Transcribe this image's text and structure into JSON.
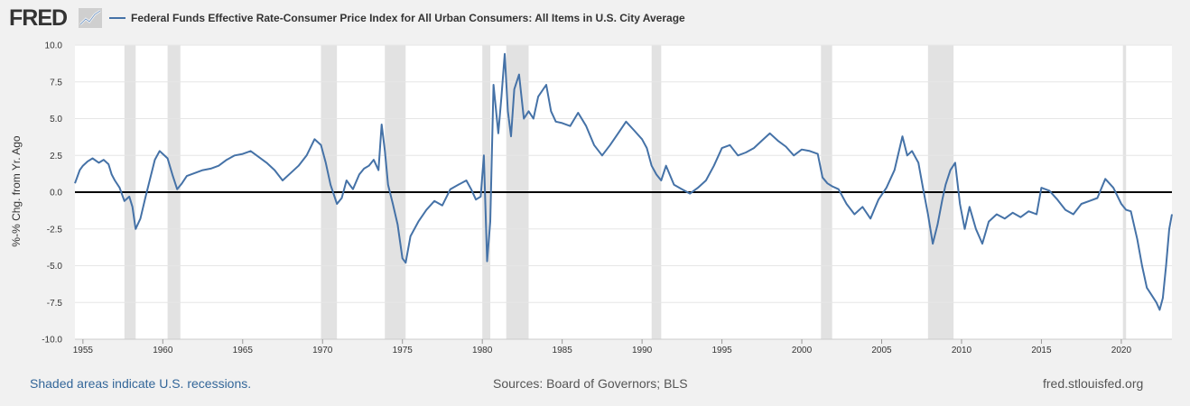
{
  "header": {
    "logo_text": "FRED",
    "legend_label": "Federal Funds Effective Rate-Consumer Price Index for All Urban Consumers: All Items in U.S. City Average"
  },
  "footer": {
    "note": "Shaded areas indicate U.S. recessions.",
    "sources": "Sources: Board of Governors; BLS",
    "site": "fred.stlouisfed.org"
  },
  "colors": {
    "series": "#4572a7",
    "recession": "#e2e2e2",
    "grid": "#e6e6e6",
    "zero_line": "#000000"
  },
  "chart_data": {
    "type": "line",
    "title": "Federal Funds Effective Rate-Consumer Price Index for All Urban Consumers: All Items in U.S. City Average",
    "xlabel": "",
    "ylabel": "%-% Chg. from Yr. Ago",
    "xlim": [
      1954.5,
      2023.17
    ],
    "ylim": [
      -10,
      10
    ],
    "x_ticks": [
      "1955",
      "1960",
      "1965",
      "1970",
      "1975",
      "1980",
      "1985",
      "1990",
      "1995",
      "2000",
      "2005",
      "2010",
      "2015",
      "2020"
    ],
    "y_ticks": [
      "10.0",
      "7.5",
      "5.0",
      "2.5",
      "0.0",
      "-2.5",
      "-5.0",
      "-7.5",
      "-10.0"
    ],
    "recessions": [
      [
        1957.6,
        1958.3
      ],
      [
        1960.3,
        1961.1
      ],
      [
        1969.9,
        1970.9
      ],
      [
        1973.9,
        1975.2
      ],
      [
        1980.0,
        1980.5
      ],
      [
        1981.5,
        1982.9
      ],
      [
        1990.6,
        1991.2
      ],
      [
        2001.2,
        2001.9
      ],
      [
        2007.9,
        2009.5
      ],
      [
        2020.1,
        2020.3
      ]
    ],
    "zero_line": 0,
    "series": [
      {
        "name": "Federal Funds Effective Rate-Consumer Price Index for All Urban Consumers: All Items in U.S. City Average",
        "x": [
          1954.5,
          1954.8,
          1955.0,
          1955.3,
          1955.6,
          1956.0,
          1956.3,
          1956.6,
          1956.8,
          1957.0,
          1957.3,
          1957.6,
          1957.9,
          1958.1,
          1958.3,
          1958.6,
          1958.9,
          1959.2,
          1959.5,
          1959.8,
          1960.0,
          1960.3,
          1960.6,
          1960.9,
          1961.2,
          1961.5,
          1962.0,
          1962.5,
          1963.0,
          1963.5,
          1964.0,
          1964.5,
          1965.0,
          1965.5,
          1966.0,
          1966.5,
          1967.0,
          1967.5,
          1968.0,
          1968.5,
          1969.0,
          1969.5,
          1969.9,
          1970.2,
          1970.5,
          1970.9,
          1971.2,
          1971.5,
          1971.9,
          1972.3,
          1972.6,
          1972.9,
          1973.2,
          1973.5,
          1973.7,
          1973.9,
          1974.1,
          1974.4,
          1974.7,
          1975.0,
          1975.2,
          1975.5,
          1976.0,
          1976.5,
          1977.0,
          1977.5,
          1978.0,
          1978.5,
          1979.0,
          1979.3,
          1979.6,
          1979.9,
          1980.1,
          1980.3,
          1980.5,
          1980.7,
          1981.0,
          1981.2,
          1981.4,
          1981.6,
          1981.8,
          1982.0,
          1982.3,
          1982.6,
          1982.9,
          1983.2,
          1983.5,
          1984.0,
          1984.3,
          1984.6,
          1985.0,
          1985.5,
          1986.0,
          1986.5,
          1987.0,
          1987.5,
          1988.0,
          1988.5,
          1989.0,
          1989.5,
          1990.0,
          1990.3,
          1990.6,
          1990.9,
          1991.2,
          1991.5,
          1992.0,
          1992.5,
          1993.0,
          1993.5,
          1994.0,
          1994.5,
          1995.0,
          1995.5,
          1996.0,
          1996.5,
          1997.0,
          1997.5,
          1998.0,
          1998.5,
          1999.0,
          1999.5,
          2000.0,
          2000.5,
          2001.0,
          2001.3,
          2001.6,
          2001.9,
          2002.3,
          2002.8,
          2003.3,
          2003.8,
          2004.3,
          2004.8,
          2005.3,
          2005.8,
          2006.3,
          2006.6,
          2006.9,
          2007.3,
          2007.6,
          2007.9,
          2008.2,
          2008.5,
          2008.8,
          2009.0,
          2009.3,
          2009.6,
          2009.9,
          2010.2,
          2010.5,
          2010.9,
          2011.3,
          2011.7,
          2012.2,
          2012.7,
          2013.2,
          2013.7,
          2014.2,
          2014.7,
          2015.0,
          2015.5,
          2016.0,
          2016.5,
          2017.0,
          2017.5,
          2018.0,
          2018.5,
          2019.0,
          2019.5,
          2020.0,
          2020.3,
          2020.6,
          2021.0,
          2021.3,
          2021.6,
          2021.9,
          2022.2,
          2022.4,
          2022.6,
          2022.8,
          2023.0,
          2023.17
        ],
        "values": [
          0.6,
          1.5,
          1.8,
          2.1,
          2.3,
          2.0,
          2.2,
          1.9,
          1.2,
          0.8,
          0.3,
          -0.6,
          -0.3,
          -1.0,
          -2.5,
          -1.8,
          -0.4,
          0.9,
          2.2,
          2.8,
          2.6,
          2.3,
          1.2,
          0.2,
          0.6,
          1.1,
          1.3,
          1.5,
          1.6,
          1.8,
          2.2,
          2.5,
          2.6,
          2.8,
          2.4,
          2.0,
          1.5,
          0.8,
          1.3,
          1.8,
          2.5,
          3.6,
          3.2,
          2.0,
          0.5,
          -0.8,
          -0.4,
          0.8,
          0.2,
          1.2,
          1.6,
          1.8,
          2.2,
          1.5,
          4.6,
          2.8,
          0.5,
          -0.8,
          -2.2,
          -4.5,
          -4.8,
          -3.0,
          -2.0,
          -1.2,
          -0.6,
          -0.9,
          0.2,
          0.5,
          0.8,
          0.2,
          -0.5,
          -0.3,
          2.5,
          -4.7,
          -2.0,
          7.3,
          4.0,
          6.5,
          9.4,
          5.5,
          3.8,
          7.0,
          8.0,
          5.0,
          5.5,
          5.0,
          6.5,
          7.3,
          5.5,
          4.8,
          4.7,
          4.5,
          5.4,
          4.5,
          3.2,
          2.5,
          3.2,
          4.0,
          4.8,
          4.2,
          3.6,
          3.0,
          1.8,
          1.2,
          0.8,
          1.8,
          0.5,
          0.2,
          -0.1,
          0.3,
          0.8,
          1.8,
          3.0,
          3.2,
          2.5,
          2.7,
          3.0,
          3.5,
          4.0,
          3.5,
          3.1,
          2.5,
          2.9,
          2.8,
          2.6,
          1.0,
          0.6,
          0.4,
          0.2,
          -0.8,
          -1.5,
          -1.0,
          -1.8,
          -0.5,
          0.3,
          1.5,
          3.8,
          2.5,
          2.8,
          2.0,
          0.2,
          -1.5,
          -3.5,
          -2.2,
          -0.5,
          0.5,
          1.5,
          2.0,
          -0.8,
          -2.5,
          -1.0,
          -2.5,
          -3.5,
          -2.0,
          -1.5,
          -1.8,
          -1.4,
          -1.7,
          -1.3,
          -1.5,
          0.3,
          0.1,
          -0.5,
          -1.2,
          -1.5,
          -0.8,
          -0.6,
          -0.4,
          0.9,
          0.3,
          -0.8,
          -1.2,
          -1.3,
          -3.2,
          -5.0,
          -6.5,
          -7.0,
          -7.5,
          -8.0,
          -7.2,
          -5.0,
          -2.5,
          -1.5
        ]
      }
    ]
  }
}
